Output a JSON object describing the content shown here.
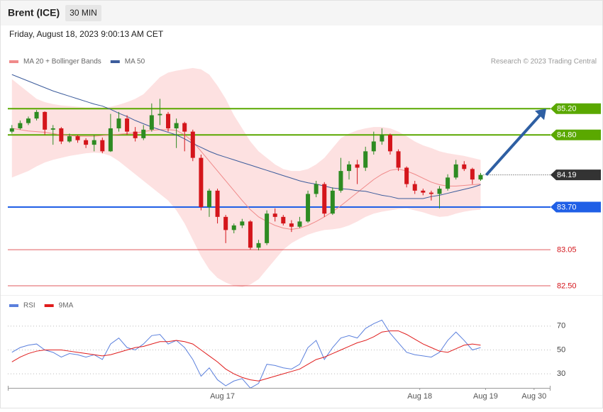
{
  "header": {
    "title": "Brent (ICE)",
    "timeframe": "30 MIN",
    "timestamp": "Friday, August 18, 2023 9:00:13 AM CET",
    "source": "Research © 2023 Trading Central"
  },
  "chart_data": [
    {
      "type": "candlestick",
      "up_color": "#2e8b22",
      "down_color": "#d4151b",
      "open": [
        84.85,
        84.9,
        84.98,
        85.05,
        85.15,
        84.88,
        84.9,
        84.7,
        84.78,
        84.72,
        84.65,
        84.72,
        84.55,
        84.9,
        85.05,
        84.85,
        84.75,
        84.88,
        85.1,
        85.12,
        84.9,
        84.98,
        84.85,
        84.45,
        83.7,
        83.95,
        83.55,
        83.35,
        83.42,
        83.48,
        83.08,
        83.15,
        83.6,
        83.55,
        83.45,
        83.4,
        83.48,
        83.9,
        84.05,
        83.6,
        83.95,
        84.25,
        84.35,
        84.3,
        84.55,
        84.7,
        84.8,
        84.55,
        84.3,
        84.05,
        83.95,
        83.92,
        83.9,
        83.98,
        84.15,
        84.35,
        84.28,
        84.12
      ],
      "high": [
        84.95,
        85.02,
        85.08,
        85.18,
        85.16,
        84.95,
        84.92,
        84.82,
        84.8,
        84.75,
        84.8,
        84.76,
        85.12,
        85.15,
        85.1,
        84.92,
        84.95,
        85.28,
        85.35,
        85.15,
        85.05,
        85.0,
        84.88,
        84.5,
        83.98,
        83.98,
        83.58,
        83.45,
        83.52,
        83.5,
        83.2,
        83.65,
        83.68,
        83.58,
        83.5,
        83.55,
        83.95,
        84.1,
        84.08,
        84.0,
        84.45,
        84.4,
        84.42,
        84.62,
        84.85,
        84.9,
        84.82,
        84.58,
        84.32,
        84.1,
        83.98,
        83.95,
        84.02,
        84.2,
        84.42,
        84.4,
        84.3,
        84.22
      ],
      "low": [
        84.82,
        84.88,
        84.95,
        85.02,
        84.8,
        84.65,
        84.66,
        84.68,
        84.68,
        84.6,
        84.55,
        84.52,
        84.54,
        84.85,
        84.8,
        84.7,
        84.72,
        84.85,
        84.95,
        84.85,
        84.6,
        84.55,
        84.4,
        83.65,
        83.55,
        83.45,
        83.15,
        83.3,
        83.38,
        83.05,
        83.04,
        83.12,
        83.48,
        83.42,
        83.32,
        83.38,
        83.46,
        83.85,
        83.55,
        83.58,
        83.92,
        84.12,
        84.05,
        84.25,
        84.5,
        84.65,
        84.5,
        84.25,
        84.0,
        83.9,
        83.88,
        83.8,
        83.68,
        83.95,
        84.12,
        84.25,
        84.05,
        84.1
      ],
      "close": [
        84.9,
        84.98,
        85.05,
        85.15,
        84.88,
        84.9,
        84.7,
        84.78,
        84.72,
        84.65,
        84.72,
        84.55,
        84.9,
        85.05,
        84.85,
        84.75,
        84.88,
        85.1,
        85.12,
        84.9,
        84.98,
        84.85,
        84.45,
        83.7,
        83.95,
        83.55,
        83.35,
        83.42,
        83.48,
        83.08,
        83.15,
        83.6,
        83.55,
        83.45,
        83.4,
        83.48,
        83.9,
        84.05,
        83.6,
        83.95,
        84.25,
        84.35,
        84.3,
        84.55,
        84.7,
        84.8,
        84.55,
        84.3,
        84.05,
        83.95,
        83.92,
        83.9,
        83.98,
        84.15,
        84.35,
        84.28,
        84.12,
        84.19
      ],
      "series": [
        {
          "name": "MA 20 + Bollinger Bands",
          "color": "#f08a8a",
          "band_color": "#fde1e1",
          "values": [
            84.9,
            84.88,
            84.86,
            84.85,
            84.84,
            84.82,
            84.8,
            84.79,
            84.78,
            84.78,
            84.78,
            84.79,
            84.8,
            84.81,
            84.82,
            84.83,
            84.85,
            84.87,
            84.88,
            84.88,
            84.87,
            84.8,
            84.7,
            84.55,
            84.4,
            84.25,
            84.1,
            83.95,
            83.8,
            83.66,
            83.55,
            83.48,
            83.42,
            83.38,
            83.36,
            83.38,
            83.42,
            83.48,
            83.55,
            83.63,
            83.72,
            83.82,
            83.92,
            84.02,
            84.12,
            84.2,
            84.26,
            84.28,
            84.25,
            84.2,
            84.14,
            84.08,
            84.04,
            84.02,
            84.02,
            84.03,
            84.04,
            84.05
          ],
          "upper": [
            85.65,
            85.55,
            85.45,
            85.35,
            85.3,
            85.27,
            85.25,
            85.24,
            85.23,
            85.22,
            85.22,
            85.22,
            85.23,
            85.26,
            85.3,
            85.35,
            85.42,
            85.55,
            85.68,
            85.75,
            85.78,
            85.8,
            85.82,
            85.8,
            85.72,
            85.55,
            85.35,
            85.1,
            84.9,
            84.7,
            84.55,
            84.45,
            84.35,
            84.28,
            84.25,
            84.25,
            84.28,
            84.35,
            84.45,
            84.6,
            84.75,
            84.82,
            84.87,
            84.9,
            84.92,
            84.92,
            84.9,
            84.85,
            84.78,
            84.7,
            84.64,
            84.6,
            84.55,
            84.52,
            84.5,
            84.48,
            84.45,
            84.42
          ],
          "lower": [
            84.15,
            84.2,
            84.25,
            84.32,
            84.38,
            84.42,
            84.45,
            84.48,
            84.5,
            84.52,
            84.53,
            84.52,
            84.48,
            84.4,
            84.3,
            84.2,
            84.1,
            84.0,
            83.9,
            83.8,
            83.65,
            83.45,
            83.2,
            82.95,
            82.75,
            82.62,
            82.55,
            82.5,
            82.48,
            82.52,
            82.6,
            82.75,
            82.9,
            83.05,
            83.15,
            83.22,
            83.28,
            83.32,
            83.35,
            83.36,
            83.38,
            83.42,
            83.48,
            83.55,
            83.6,
            83.63,
            83.65,
            83.67,
            83.68,
            83.65,
            83.62,
            83.58,
            83.55,
            83.56,
            83.6,
            83.63,
            83.65,
            83.66
          ]
        },
        {
          "name": "MA 50",
          "color": "#3c5c9c",
          "values": [
            85.72,
            85.67,
            85.62,
            85.57,
            85.52,
            85.47,
            85.43,
            85.39,
            85.35,
            85.31,
            85.27,
            85.24,
            85.19,
            85.13,
            85.08,
            85.02,
            84.97,
            84.92,
            84.88,
            84.84,
            84.8,
            84.74,
            84.67,
            84.61,
            84.55,
            84.5,
            84.46,
            84.42,
            84.38,
            84.34,
            84.3,
            84.26,
            84.22,
            84.18,
            84.14,
            84.1,
            84.07,
            84.05,
            84.02,
            83.99,
            83.98,
            83.97,
            83.95,
            83.94,
            83.91,
            83.88,
            83.86,
            83.83,
            83.83,
            83.83,
            83.83,
            83.86,
            83.88,
            83.91,
            83.94,
            83.97,
            84.0,
            84.04
          ]
        }
      ],
      "levels": [
        {
          "value": 85.2,
          "label": "85.20",
          "color": "#5aa800",
          "style": "box"
        },
        {
          "value": 84.8,
          "label": "84.80",
          "color": "#5aa800",
          "style": "box"
        },
        {
          "value": 84.19,
          "label": "84.19",
          "color": "#333333",
          "style": "current"
        },
        {
          "value": 83.7,
          "label": "83.70",
          "color": "#1f5fe6",
          "style": "box"
        },
        {
          "value": 83.05,
          "label": "83.05",
          "color": "#d4151b",
          "style": "text"
        },
        {
          "value": 82.5,
          "label": "82.50",
          "color": "#d4151b",
          "style": "text"
        }
      ],
      "xlim": [
        -0.5,
        65.5
      ],
      "ylim": [
        82.37,
        86.1
      ]
    },
    {
      "type": "line",
      "series": [
        {
          "name": "RSI",
          "color": "#5b80dd",
          "values": [
            48,
            52,
            54,
            55,
            50,
            48,
            44,
            47,
            46,
            44,
            46,
            42,
            55,
            60,
            52,
            50,
            55,
            62,
            63,
            55,
            58,
            52,
            42,
            28,
            35,
            25,
            20,
            24,
            26,
            18,
            22,
            38,
            37,
            35,
            34,
            38,
            52,
            58,
            42,
            52,
            60,
            62,
            60,
            68,
            72,
            75,
            64,
            56,
            48,
            46,
            45,
            44,
            48,
            58,
            65,
            58,
            50,
            52
          ]
        },
        {
          "name": "9MA",
          "color": "#e01c1c",
          "values": [
            40,
            44,
            47,
            49,
            50,
            50,
            50,
            49,
            48,
            47,
            46,
            45,
            46,
            48,
            50,
            52,
            53,
            55,
            57,
            57,
            58,
            57,
            55,
            50,
            45,
            40,
            34,
            30,
            27,
            25,
            24,
            26,
            28,
            30,
            32,
            34,
            38,
            42,
            44,
            47,
            50,
            53,
            56,
            58,
            61,
            65,
            66,
            66,
            63,
            59,
            55,
            52,
            49,
            48,
            51,
            54,
            55,
            54
          ]
        }
      ],
      "xlim": [
        -0.5,
        65.5
      ],
      "ylim": [
        20,
        80
      ],
      "yticks": [
        30,
        50,
        70
      ],
      "xticks": [
        {
          "value": 25.6,
          "label": "Aug 17"
        },
        {
          "value": 49.6,
          "label": "Aug 18"
        },
        {
          "value": 57.6,
          "label": "Aug 19"
        },
        {
          "value": 63.5,
          "label": "Aug 30"
        }
      ]
    }
  ]
}
